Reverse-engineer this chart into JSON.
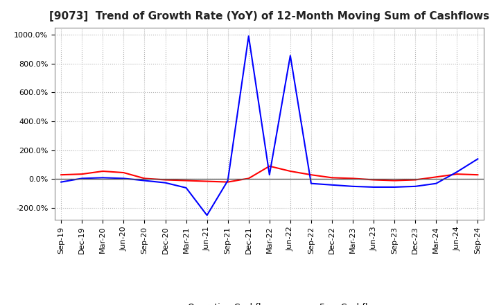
{
  "title": "[9073]  Trend of Growth Rate (YoY) of 12-Month Moving Sum of Cashflows",
  "ylim": [
    -280,
    1050
  ],
  "yticks": [
    -200,
    0,
    200,
    400,
    600,
    800,
    1000
  ],
  "x_labels": [
    "Sep-19",
    "Dec-19",
    "Mar-20",
    "Jun-20",
    "Sep-20",
    "Dec-20",
    "Mar-21",
    "Jun-21",
    "Sep-21",
    "Dec-21",
    "Mar-22",
    "Jun-22",
    "Sep-22",
    "Dec-22",
    "Mar-23",
    "Jun-23",
    "Sep-23",
    "Dec-23",
    "Mar-24",
    "Jun-24",
    "Sep-24"
  ],
  "operating_cf": [
    30,
    35,
    55,
    45,
    5,
    -5,
    -10,
    -15,
    -20,
    5,
    90,
    55,
    30,
    10,
    5,
    -5,
    -10,
    -5,
    15,
    35,
    30
  ],
  "free_cf": [
    -20,
    5,
    10,
    5,
    -10,
    -25,
    -60,
    -250,
    -10,
    990,
    30,
    855,
    -30,
    -40,
    -50,
    -55,
    -55,
    -50,
    -30,
    50,
    140
  ],
  "operating_color": "#ff0000",
  "free_color": "#0000ff",
  "bg_color": "#ffffff",
  "grid_color": "#aaaaaa",
  "title_fontsize": 11,
  "tick_fontsize": 8,
  "legend_fontsize": 9
}
